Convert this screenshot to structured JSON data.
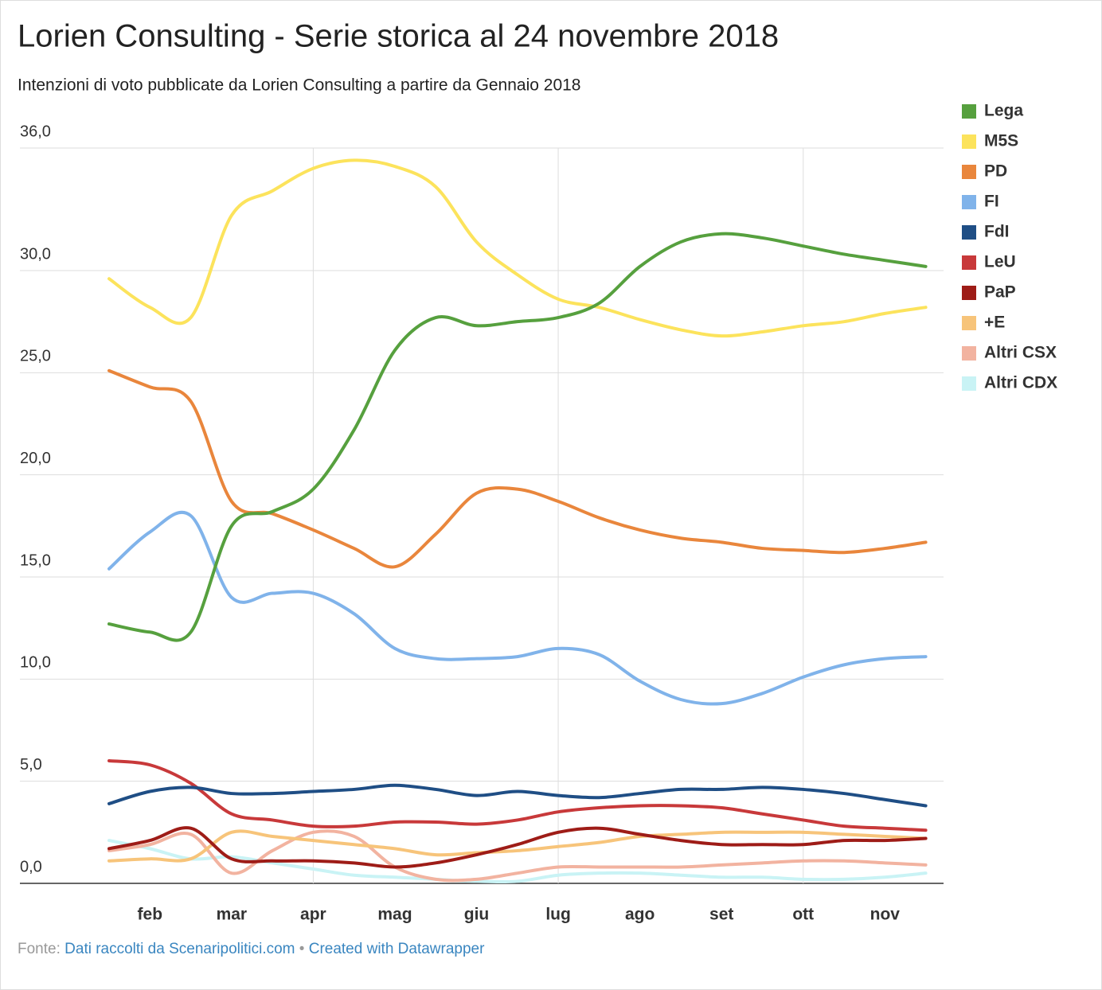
{
  "chart_data": {
    "type": "line",
    "title": "Lorien Consulting - Serie storica al 24 novembre 2018",
    "subtitle": "Intenzioni di voto pubblicate da Lorien Consulting a partire da Gennaio 2018",
    "categories": [
      null,
      "feb",
      null,
      "mar",
      null,
      "apr",
      null,
      "mag",
      null,
      "giu",
      null,
      "lug",
      null,
      "ago",
      null,
      "set",
      null,
      "ott",
      null,
      "nov",
      null
    ],
    "series": [
      {
        "name": "Lega",
        "color": "#56a03e",
        "values": [
          12.7,
          12.3,
          12.3,
          17.5,
          18.2,
          19.3,
          22.2,
          26.1,
          27.7,
          27.3,
          27.5,
          27.7,
          28.4,
          30.2,
          31.4,
          31.8,
          31.6,
          31.2,
          30.8,
          30.5,
          30.2
        ]
      },
      {
        "name": "M5S",
        "color": "#fce35c",
        "values": [
          29.6,
          28.2,
          27.7,
          32.7,
          33.9,
          35.0,
          35.4,
          35.1,
          34.1,
          31.4,
          29.8,
          28.6,
          28.2,
          27.6,
          27.1,
          26.8,
          27.0,
          27.3,
          27.5,
          27.9,
          28.2
        ]
      },
      {
        "name": "PD",
        "color": "#e9863c",
        "values": [
          25.1,
          24.3,
          23.6,
          18.7,
          18.1,
          17.3,
          16.4,
          15.5,
          17.1,
          19.1,
          19.3,
          18.7,
          17.9,
          17.3,
          16.9,
          16.7,
          16.4,
          16.3,
          16.2,
          16.4,
          16.7
        ]
      },
      {
        "name": "FI",
        "color": "#80b3ea",
        "values": [
          15.4,
          17.2,
          18.0,
          14.0,
          14.2,
          14.2,
          13.2,
          11.5,
          11.0,
          11.0,
          11.1,
          11.5,
          11.2,
          9.9,
          9.0,
          8.8,
          9.3,
          10.1,
          10.7,
          11.0,
          11.1
        ]
      },
      {
        "name": "FdI",
        "color": "#1f4e85",
        "values": [
          3.9,
          4.5,
          4.7,
          4.4,
          4.4,
          4.5,
          4.6,
          4.8,
          4.6,
          4.3,
          4.5,
          4.3,
          4.2,
          4.4,
          4.6,
          4.6,
          4.7,
          4.6,
          4.4,
          4.1,
          3.8
        ]
      },
      {
        "name": "LeU",
        "color": "#c8393a",
        "values": [
          6.0,
          5.8,
          4.9,
          3.4,
          3.1,
          2.8,
          2.8,
          3.0,
          3.0,
          2.9,
          3.1,
          3.5,
          3.7,
          3.8,
          3.8,
          3.7,
          3.4,
          3.1,
          2.8,
          2.7,
          2.6
        ]
      },
      {
        "name": "PaP",
        "color": "#9e1c17",
        "values": [
          1.7,
          2.1,
          2.7,
          1.2,
          1.1,
          1.1,
          1.0,
          0.8,
          1.0,
          1.4,
          1.9,
          2.5,
          2.7,
          2.4,
          2.1,
          1.9,
          1.9,
          1.9,
          2.1,
          2.1,
          2.2
        ]
      },
      {
        "name": "+E",
        "color": "#f7c47a",
        "values": [
          1.1,
          1.2,
          1.2,
          2.5,
          2.3,
          2.1,
          1.9,
          1.7,
          1.4,
          1.5,
          1.6,
          1.8,
          2.0,
          2.3,
          2.4,
          2.5,
          2.5,
          2.5,
          2.4,
          2.3,
          2.2
        ]
      },
      {
        "name": "Altri CSX",
        "color": "#f2b3a0",
        "values": [
          1.6,
          1.9,
          2.4,
          0.5,
          1.6,
          2.5,
          2.3,
          0.8,
          0.2,
          0.2,
          0.5,
          0.8,
          0.8,
          0.8,
          0.8,
          0.9,
          1.0,
          1.1,
          1.1,
          1.0,
          0.9
        ]
      },
      {
        "name": "Altri CDX",
        "color": "#c9f3f5",
        "values": [
          2.1,
          1.7,
          1.2,
          1.3,
          1.0,
          0.7,
          0.4,
          0.3,
          0.2,
          0.1,
          0.1,
          0.4,
          0.5,
          0.5,
          0.4,
          0.3,
          0.3,
          0.2,
          0.2,
          0.3,
          0.5
        ]
      }
    ],
    "ylim": [
      0,
      36
    ],
    "yticks": [
      {
        "value": 0,
        "label": "0,0"
      },
      {
        "value": 5,
        "label": "5,0"
      },
      {
        "value": 10,
        "label": "10,0"
      },
      {
        "value": 15,
        "label": "15,0"
      },
      {
        "value": 20,
        "label": "20,0"
      },
      {
        "value": 25,
        "label": "25,0"
      },
      {
        "value": 30,
        "label": "30,0"
      },
      {
        "value": 36,
        "label": "36,0"
      }
    ],
    "grid": true,
    "legend": "right",
    "source_label": "Fonte:",
    "source": "Dati raccolti da Scenaripolitici.com",
    "separator": "•",
    "credit": "Created with Datawrapper"
  }
}
